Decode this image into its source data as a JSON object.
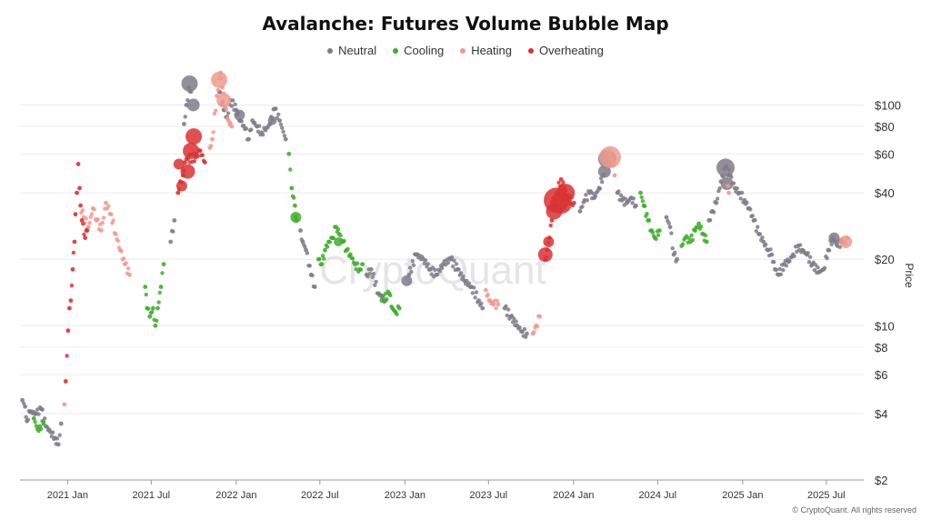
{
  "title": "Avalanche: Futures Volume Bubble Map",
  "watermark": "CryptoQuant",
  "footer": "© CryptoQuant. All rights reserved",
  "legend": [
    {
      "label": "Neutral",
      "color": "#7f7b88"
    },
    {
      "label": "Cooling",
      "color": "#3fae2a"
    },
    {
      "label": "Heating",
      "color": "#f09a8d"
    },
    {
      "label": "Overheating",
      "color": "#d93232"
    }
  ],
  "chart_data": {
    "type": "scatter",
    "yscale": "log",
    "ylabel": "Price",
    "ylim": [
      2,
      140
    ],
    "xlim": [
      "2020-09-20",
      "2025-09-20"
    ],
    "y_ticks": [
      {
        "value": 2,
        "label": "$2"
      },
      {
        "value": 4,
        "label": "$4"
      },
      {
        "value": 6,
        "label": "$6"
      },
      {
        "value": 8,
        "label": "$8"
      },
      {
        "value": 10,
        "label": "$10"
      },
      {
        "value": 20,
        "label": "$20"
      },
      {
        "value": 40,
        "label": "$40"
      },
      {
        "value": 60,
        "label": "$60"
      },
      {
        "value": 80,
        "label": "$80"
      },
      {
        "value": 100,
        "label": "$100"
      }
    ],
    "x_ticks": [
      {
        "value": "2021-01-01",
        "label": "2021 Jan"
      },
      {
        "value": "2021-07-01",
        "label": "2021 Jul"
      },
      {
        "value": "2022-01-01",
        "label": "2022 Jan"
      },
      {
        "value": "2022-07-01",
        "label": "2022 Jul"
      },
      {
        "value": "2023-01-01",
        "label": "2023 Jan"
      },
      {
        "value": "2023-07-01",
        "label": "2023 Jul"
      },
      {
        "value": "2024-01-01",
        "label": "2024 Jan"
      },
      {
        "value": "2024-07-01",
        "label": "2024 Jul"
      },
      {
        "value": "2025-01-01",
        "label": "2025 Jan"
      },
      {
        "value": "2025-07-01",
        "label": "2025 Jul"
      }
    ],
    "series": [
      {
        "name": "Neutral",
        "color": "#7f7b88",
        "points": [
          [
            "2020-09-25",
            4.6
          ],
          [
            "2020-10-01",
            4.3
          ],
          [
            "2020-10-05",
            3.7
          ],
          [
            "2020-10-10",
            4.1
          ],
          [
            "2020-10-25",
            4.0
          ],
          [
            "2020-11-05",
            4.2
          ],
          [
            "2020-11-15",
            3.5
          ],
          [
            "2020-11-25",
            3.3
          ],
          [
            "2020-12-05",
            3.1
          ],
          [
            "2020-12-12",
            2.9
          ],
          [
            "2020-12-18",
            3.6
          ],
          [
            "2021-08-12",
            24
          ],
          [
            "2021-08-20",
            30
          ],
          [
            "2021-09-10",
            82
          ],
          [
            "2021-09-15",
            100
          ],
          [
            "2021-09-20",
            120
          ],
          [
            "2021-09-25",
            115
          ],
          [
            "2021-11-25",
            115
          ],
          [
            "2021-12-05",
            95
          ],
          [
            "2021-12-12",
            88
          ],
          [
            "2021-12-20",
            105
          ],
          [
            "2022-01-01",
            95
          ],
          [
            "2022-01-10",
            85
          ],
          [
            "2022-01-20",
            78
          ],
          [
            "2022-01-28",
            70
          ],
          [
            "2022-02-05",
            85
          ],
          [
            "2022-02-15",
            80
          ],
          [
            "2022-02-25",
            75
          ],
          [
            "2022-03-05",
            77
          ],
          [
            "2022-03-15",
            82
          ],
          [
            "2022-03-25",
            96
          ],
          [
            "2022-04-05",
            85
          ],
          [
            "2022-04-18",
            70
          ],
          [
            "2022-05-20",
            27
          ],
          [
            "2022-05-25",
            24
          ],
          [
            "2022-06-01",
            22
          ],
          [
            "2022-06-12",
            17
          ],
          [
            "2022-06-20",
            15
          ],
          [
            "2022-10-10",
            17
          ],
          [
            "2022-10-20",
            18
          ],
          [
            "2022-11-05",
            14
          ],
          [
            "2022-11-20",
            13
          ],
          [
            "2023-01-10",
            17
          ],
          [
            "2023-01-25",
            21
          ],
          [
            "2023-02-10",
            20
          ],
          [
            "2023-02-25",
            18
          ],
          [
            "2023-03-10",
            17
          ],
          [
            "2023-03-25",
            19
          ],
          [
            "2023-04-10",
            20
          ],
          [
            "2023-04-25",
            18
          ],
          [
            "2023-05-10",
            16
          ],
          [
            "2023-05-25",
            15
          ],
          [
            "2023-06-10",
            13
          ],
          [
            "2023-06-18",
            12
          ],
          [
            "2023-08-05",
            12
          ],
          [
            "2023-08-18",
            11
          ],
          [
            "2023-09-01",
            10
          ],
          [
            "2023-09-12",
            9.4
          ],
          [
            "2023-09-22",
            9.2
          ],
          [
            "2024-01-15",
            33
          ],
          [
            "2024-01-25",
            37
          ],
          [
            "2024-02-05",
            40
          ],
          [
            "2024-02-15",
            38
          ],
          [
            "2024-02-25",
            42
          ],
          [
            "2024-03-05",
            48
          ],
          [
            "2024-03-12",
            55
          ],
          [
            "2024-04-05",
            40
          ],
          [
            "2024-04-15",
            37
          ],
          [
            "2024-04-25",
            36
          ],
          [
            "2024-05-05",
            38
          ],
          [
            "2024-05-15",
            35
          ],
          [
            "2024-07-20",
            31
          ],
          [
            "2024-07-28",
            28
          ],
          [
            "2024-08-05",
            21
          ],
          [
            "2024-08-12",
            20
          ],
          [
            "2024-10-20",
            30
          ],
          [
            "2024-10-28",
            33
          ],
          [
            "2024-11-05",
            36
          ],
          [
            "2024-11-15",
            45
          ],
          [
            "2024-11-25",
            52
          ],
          [
            "2024-12-05",
            48
          ],
          [
            "2024-12-15",
            42
          ],
          [
            "2024-12-25",
            40
          ],
          [
            "2025-01-05",
            37
          ],
          [
            "2025-01-15",
            34
          ],
          [
            "2025-01-25",
            30
          ],
          [
            "2025-02-05",
            26
          ],
          [
            "2025-02-15",
            24
          ],
          [
            "2025-02-25",
            22
          ],
          [
            "2025-03-05",
            21
          ],
          [
            "2025-03-12",
            18
          ],
          [
            "2025-03-20",
            17
          ],
          [
            "2025-04-01",
            19
          ],
          [
            "2025-04-10",
            19.5
          ],
          [
            "2025-04-20",
            21
          ],
          [
            "2025-05-01",
            23
          ],
          [
            "2025-05-10",
            22
          ],
          [
            "2025-05-20",
            21
          ],
          [
            "2025-06-01",
            19
          ],
          [
            "2025-06-15",
            17.5
          ],
          [
            "2025-06-25",
            18
          ],
          [
            "2025-07-05",
            22
          ],
          [
            "2025-07-15",
            25
          ],
          [
            "2025-07-25",
            23
          ],
          [
            "2025-08-05",
            24
          ]
        ],
        "big": [
          [
            "2021-09-22",
            125,
            9
          ],
          [
            "2021-09-30",
            100,
            7
          ],
          [
            "2022-01-08",
            90,
            6
          ],
          [
            "2022-03-20",
            85,
            5
          ],
          [
            "2024-03-14",
            57,
            10
          ],
          [
            "2024-03-08",
            50,
            7
          ],
          [
            "2024-11-25",
            52,
            10
          ],
          [
            "2024-11-28",
            44,
            7
          ],
          [
            "2023-01-05",
            16,
            6
          ],
          [
            "2025-07-18",
            25,
            6
          ]
        ]
      },
      {
        "name": "Cooling",
        "color": "#3fae2a",
        "points": [
          [
            "2020-10-20",
            3.8
          ],
          [
            "2020-10-28",
            3.4
          ],
          [
            "2020-11-02",
            3.5
          ],
          [
            "2020-11-10",
            3.6
          ],
          [
            "2021-06-18",
            15
          ],
          [
            "2021-06-22",
            12
          ],
          [
            "2021-06-28",
            11
          ],
          [
            "2021-07-05",
            12
          ],
          [
            "2021-07-10",
            10
          ],
          [
            "2021-07-15",
            12
          ],
          [
            "2021-07-22",
            15
          ],
          [
            "2021-07-28",
            19
          ],
          [
            "2022-04-25",
            60
          ],
          [
            "2022-05-01",
            42
          ],
          [
            "2022-05-08",
            35
          ],
          [
            "2022-05-12",
            30
          ],
          [
            "2022-06-28",
            20
          ],
          [
            "2022-07-05",
            19
          ],
          [
            "2022-07-12",
            22
          ],
          [
            "2022-07-20",
            24
          ],
          [
            "2022-07-28",
            25
          ],
          [
            "2022-08-05",
            28
          ],
          [
            "2022-08-12",
            26
          ],
          [
            "2022-08-20",
            24
          ],
          [
            "2022-08-28",
            22
          ],
          [
            "2022-09-05",
            21
          ],
          [
            "2022-09-15",
            19
          ],
          [
            "2022-09-25",
            18
          ],
          [
            "2022-10-01",
            19
          ],
          [
            "2022-11-12",
            13
          ],
          [
            "2022-11-28",
            14
          ],
          [
            "2022-12-05",
            12
          ],
          [
            "2022-12-12",
            11.5
          ],
          [
            "2022-12-20",
            12
          ],
          [
            "2024-05-25",
            40
          ],
          [
            "2024-06-01",
            35
          ],
          [
            "2024-06-10",
            30
          ],
          [
            "2024-06-18",
            27
          ],
          [
            "2024-06-25",
            25
          ],
          [
            "2024-07-05",
            27
          ],
          [
            "2024-08-22",
            23
          ],
          [
            "2024-08-30",
            25
          ],
          [
            "2024-09-10",
            24
          ],
          [
            "2024-09-20",
            27
          ],
          [
            "2024-09-28",
            29
          ],
          [
            "2024-10-08",
            26
          ],
          [
            "2024-10-15",
            24
          ]
        ],
        "big": [
          [
            "2022-05-10",
            31,
            6
          ],
          [
            "2022-08-10",
            24,
            5
          ]
        ]
      },
      {
        "name": "Heating",
        "color": "#f09a8d",
        "points": [
          [
            "2020-12-25",
            4.4
          ],
          [
            "2021-01-28",
            35
          ],
          [
            "2021-02-05",
            31
          ],
          [
            "2021-02-15",
            28
          ],
          [
            "2021-02-25",
            34
          ],
          [
            "2021-03-05",
            30
          ],
          [
            "2021-03-15",
            27
          ],
          [
            "2021-03-25",
            36
          ],
          [
            "2021-04-05",
            32
          ],
          [
            "2021-04-15",
            26
          ],
          [
            "2021-04-25",
            22
          ],
          [
            "2021-05-05",
            19
          ],
          [
            "2021-05-15",
            17
          ],
          [
            "2021-11-05",
            64
          ],
          [
            "2021-11-10",
            70
          ],
          [
            "2021-11-20",
            110
          ],
          [
            "2021-11-28",
            140
          ],
          [
            "2021-12-02",
            120
          ],
          [
            "2021-12-08",
            98
          ],
          [
            "2021-12-15",
            85
          ],
          [
            "2021-12-22",
            80
          ],
          [
            "2023-06-25",
            14.5
          ],
          [
            "2023-07-02",
            13
          ],
          [
            "2023-07-12",
            12.5
          ],
          [
            "2023-07-22",
            12.5
          ],
          [
            "2023-10-05",
            9.2
          ],
          [
            "2023-10-12",
            10
          ],
          [
            "2023-10-20",
            11
          ],
          [
            "2024-03-18",
            62
          ],
          [
            "2024-03-25",
            55
          ],
          [
            "2024-03-30",
            48
          ],
          [
            "2024-11-30",
            43
          ],
          [
            "2024-12-02",
            40
          ],
          [
            "2025-08-10",
            24
          ],
          [
            "2025-08-15",
            25
          ]
        ],
        "big": [
          [
            "2021-11-25",
            130,
            9
          ],
          [
            "2021-12-05",
            105,
            8
          ],
          [
            "2024-03-20",
            58,
            12
          ],
          [
            "2025-08-12",
            24,
            7
          ]
        ]
      },
      {
        "name": "Overheating",
        "color": "#d93232",
        "points": [
          [
            "2020-12-28",
            5.6
          ],
          [
            "2021-01-02",
            9.5
          ],
          [
            "2021-01-05",
            12
          ],
          [
            "2021-01-08",
            13
          ],
          [
            "2021-01-12",
            18
          ],
          [
            "2021-01-16",
            24
          ],
          [
            "2021-01-18",
            32
          ],
          [
            "2021-01-21",
            40
          ],
          [
            "2021-01-24",
            54
          ],
          [
            "2021-01-27",
            42
          ],
          [
            "2021-02-01",
            30
          ],
          [
            "2021-02-08",
            25
          ],
          [
            "2021-02-12",
            27
          ],
          [
            "2021-08-28",
            40
          ],
          [
            "2021-09-02",
            45
          ],
          [
            "2021-09-08",
            48
          ],
          [
            "2021-09-12",
            55
          ],
          [
            "2021-09-18",
            57
          ],
          [
            "2021-10-05",
            58
          ],
          [
            "2021-10-15",
            62
          ],
          [
            "2021-10-25",
            55
          ],
          [
            "2023-11-01",
            20
          ],
          [
            "2023-11-05",
            22
          ],
          [
            "2023-11-10",
            25
          ],
          [
            "2023-11-15",
            30
          ],
          [
            "2023-11-20",
            35
          ],
          [
            "2023-11-25",
            40
          ],
          [
            "2023-12-05",
            46
          ],
          [
            "2023-12-12",
            42
          ],
          [
            "2023-12-20",
            38
          ],
          [
            "2024-01-02",
            36
          ]
        ],
        "big": [
          [
            "2021-08-30",
            54,
            6
          ],
          [
            "2021-09-05",
            43,
            6
          ],
          [
            "2021-09-25",
            62,
            9
          ],
          [
            "2021-10-01",
            72,
            9
          ],
          [
            "2021-09-18",
            50,
            8
          ],
          [
            "2023-11-01",
            21,
            8
          ],
          [
            "2023-11-08",
            24,
            6
          ],
          [
            "2023-11-25",
            37,
            14
          ],
          [
            "2023-12-05",
            36,
            12
          ],
          [
            "2023-12-15",
            40,
            10
          ],
          [
            "2023-11-20",
            33,
            9
          ]
        ]
      }
    ]
  }
}
